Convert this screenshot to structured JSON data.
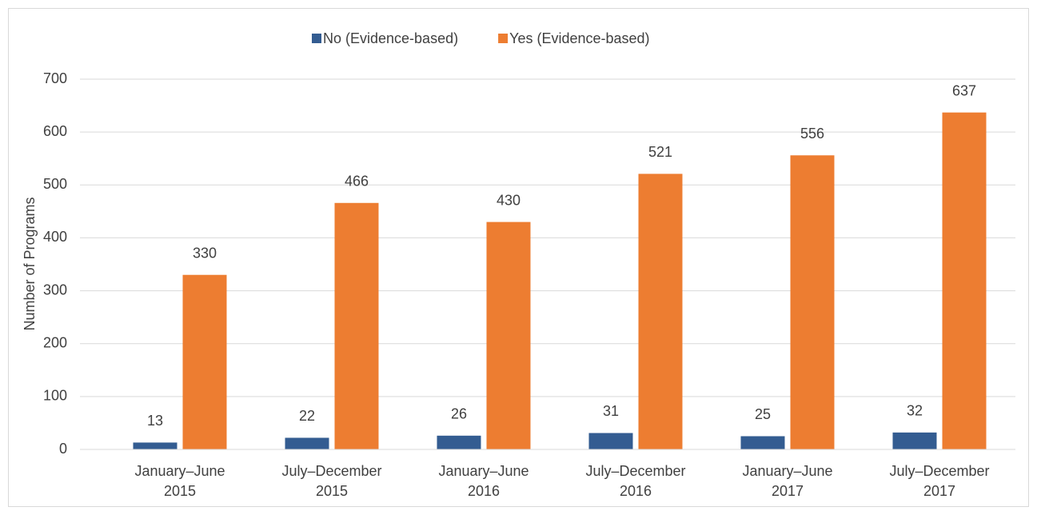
{
  "chart_data": {
    "type": "bar",
    "y_label": "Number of Programs",
    "categories": [
      "January–June 2015",
      "July–December 2015",
      "January–June 2016",
      "July–December 2016",
      "January–June 2017",
      "July–December 2017"
    ],
    "series": [
      {
        "name": "No (Evidence-based)",
        "color": "#335c91",
        "values": [
          13,
          22,
          26,
          31,
          25,
          32
        ]
      },
      {
        "name": "Yes (Evidence-based)",
        "color": "#ed7d31",
        "values": [
          330,
          466,
          430,
          521,
          556,
          637
        ]
      }
    ],
    "ylim": [
      0,
      700
    ],
    "yticks": [
      0,
      100,
      200,
      300,
      400,
      500,
      600,
      700
    ],
    "grid": true,
    "legend": "top",
    "data_labels": true
  }
}
